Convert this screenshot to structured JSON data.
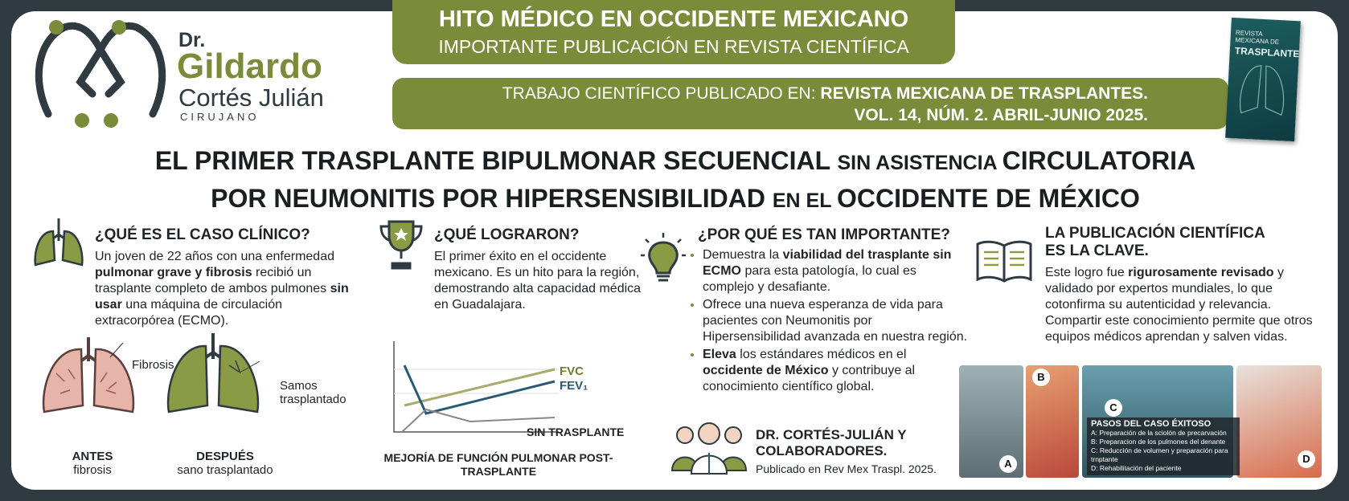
{
  "logo": {
    "prefix": "Dr.",
    "first_name": "Gildardo",
    "last_name": "Cortés Julián",
    "role": "CIRUJANO"
  },
  "banner": {
    "title": "HITO MÉDICO EN OCCIDENTE MEXICANO",
    "subtitle": "IMPORTANTE PUBLICACIÓN EN REVISTA CIENTÍFICA"
  },
  "publication": {
    "lead": "TRABAJO CIENTÍFICO PUBLICADO EN:",
    "journal": "REVISTA MEXICANA DE TRASPLANTES.",
    "issue": "VOL. 14, NÚM. 2. ABRIL-JUNIO 2025."
  },
  "cover": {
    "title_top": "REVISTA MEXICANA DE",
    "title_main": "TRASPLANTES"
  },
  "headline": {
    "lines": [
      [
        {
          "text": "EL PRIMER TRASPLANTE BIPULMONAR SECUENCIAL "
        },
        {
          "text": "SIN ASISTENCIA ",
          "small": true
        },
        {
          "text": "CIRCULATORIA"
        }
      ],
      [
        {
          "text": "POR NEUMONITIS POR HIPERSENSIBILIDAD "
        },
        {
          "text": "EN EL ",
          "small": true
        },
        {
          "text": "OCCIDENTE DE MÉXICO"
        }
      ]
    ]
  },
  "sections": [
    {
      "heading": "¿QUÉ ES EL CASO CLÍNICO?",
      "runs": [
        {
          "text": "Un joven de 22 años con una enfermedad "
        },
        {
          "text": "pulmonar grave y fibrosis",
          "bold": true
        },
        {
          "text": " recibió un trasplante completo de ambos pulmones "
        },
        {
          "text": "sin usar",
          "bold": true
        },
        {
          "text": " una máquina de circulación extracorpórea (ECMO)."
        }
      ]
    },
    {
      "heading": "¿QUÉ LOGRARON?",
      "runs": [
        {
          "text": "El primer éxito en el occidente mexicano. Es un hito para la región, demostrando alta capacidad médica en Guadalajara."
        }
      ]
    },
    {
      "heading": "¿POR QUÉ ES TAN IMPORTANTE?",
      "bullets": [
        [
          {
            "text": "Demuestra la "
          },
          {
            "text": "viabilidad del trasplante sin ECMO",
            "bold": true
          },
          {
            "text": " para esta patología, lo cual es complejo y desafiante."
          }
        ],
        [
          {
            "text": "Ofrece una nueva esperanza de vida para pacientes con Neumonitis por Hipersensibilidad avanzada en nuestra región."
          }
        ],
        [
          {
            "text": "Eleva",
            "bold": true
          },
          {
            "text": " los estándares médicos en el "
          },
          {
            "text": "occidente de México",
            "bold": true
          },
          {
            "text": " y contribuye al conocimiento científico global."
          }
        ]
      ]
    },
    {
      "heading": "LA PUBLICACIÓN CIENTÍFICA ES LA CLAVE.",
      "runs": [
        {
          "text": "Este logro fue "
        },
        {
          "text": "rigurosamente revisado",
          "bold": true
        },
        {
          "text": " y validado por expertos mundiales, lo que cotonfirma su autenticidad y relevancia. Compartir este conocimiento permite que otros equipos médicos aprendan y salven vidas."
        }
      ]
    }
  ],
  "case_figure": {
    "annotation_before": "Fibrosis",
    "annotation_after": "Samos trasplantado",
    "before_title": "ANTES",
    "before_note": "fibrosis",
    "after_title": "DESPUÉS",
    "after_note": "sano trasplantado"
  },
  "chart_figure": {
    "series": [
      "FVC",
      "FEV₁"
    ],
    "baseline": "SIN TRASPLANTE",
    "caption": "MEJORÍA DE FUNCIÓN PULMONAR POST-TRASPLANTE"
  },
  "authors": {
    "name": "DR. CORTÉS-JULIÁN Y COLABORADORES.",
    "note": "Publicado en Rev Mex Traspl. 2025."
  },
  "photos": {
    "labels": [
      "A",
      "B",
      "C",
      "D"
    ],
    "caption_title": "PASOS DEL CASO ÉXITOSO",
    "steps": [
      "A: Preparación de la sciolón de precarvación",
      "B: Preparacion de los pulmones del denante",
      "C: Reducción de volumen y preparación para trnptante",
      "D: Rehabilitación del paciente"
    ]
  }
}
